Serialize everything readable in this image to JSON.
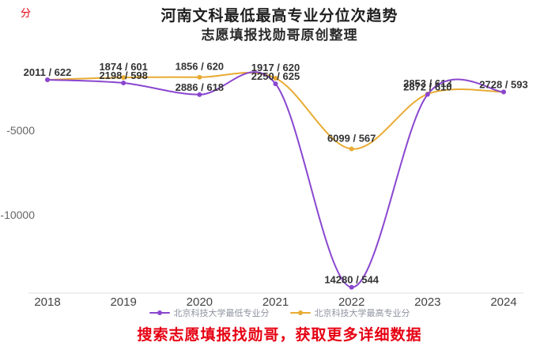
{
  "header": {
    "corner_mark": "分",
    "title": "河南文科最低最高专业分位次趋势",
    "subtitle": "志愿填报找勋哥原创整理"
  },
  "footer": {
    "text": "搜索志愿填报找勋哥，获取更多详细数据"
  },
  "chart_data": {
    "type": "line",
    "title": "河南文科最低最高专业分位次趋势",
    "subtitle": "志愿填报找勋哥原创整理",
    "categories": [
      "2018",
      "2019",
      "2020",
      "2021",
      "2022",
      "2023",
      "2024"
    ],
    "y_axis": {
      "ticks": [
        "-5000",
        "-10000"
      ],
      "tick_values": [
        -5000,
        -10000
      ],
      "min": -15000,
      "max": 0,
      "note": "ranks are plotted as negative values; labels show 'rank / score'"
    },
    "series": [
      {
        "name": "北京科技大学最低专业分",
        "color": "#8a46cf",
        "ranks": [
          2011,
          2198,
          2886,
          2250,
          14280,
          2872,
          2728
        ],
        "scores": [
          622,
          598,
          618,
          625,
          544,
          610,
          593
        ],
        "labels": [
          "2011 / 622",
          "2198 / 598",
          "2886 / 618",
          "2250 / 625",
          "14280 / 544",
          "2872 / 610",
          "2728 / 593"
        ]
      },
      {
        "name": "北京科技大学最高专业分",
        "color": "#e8ab33",
        "ranks": [
          2011,
          1874,
          1856,
          1917,
          6099,
          2853,
          2728
        ],
        "scores": [
          622,
          601,
          620,
          620,
          567,
          613,
          593
        ],
        "labels": [
          "",
          "1874 / 601",
          "1856 / 620",
          "1917 / 620",
          "6099 / 567",
          "2853 / 613",
          ""
        ]
      }
    ],
    "legend_position": "bottom",
    "grid": false,
    "smooth": true
  }
}
